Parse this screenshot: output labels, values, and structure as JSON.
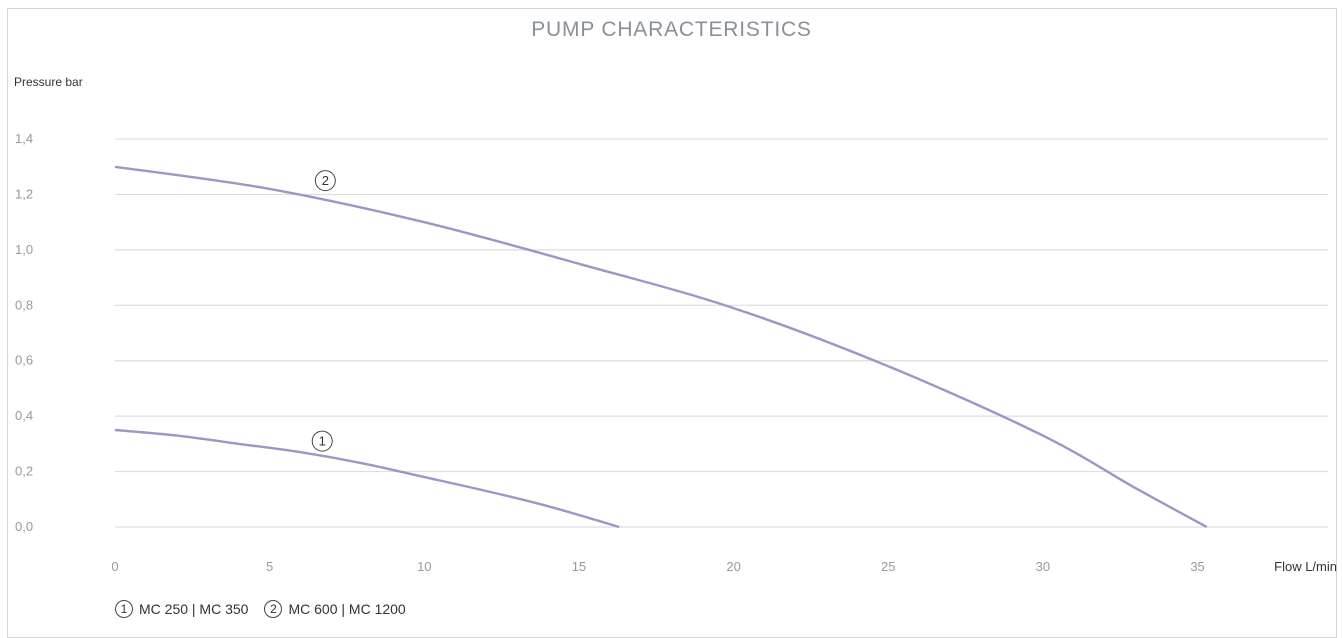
{
  "chart_data": {
    "type": "line",
    "title": "PUMP CHARACTERISTICS",
    "ylabel": "Pressure bar",
    "xlabel": "Flow L/min",
    "xlim": [
      0,
      37
    ],
    "ylim": [
      0,
      1.4
    ],
    "x_ticks": [
      "0",
      "5",
      "10",
      "15",
      "20",
      "25",
      "30",
      "35"
    ],
    "y_ticks": [
      "0,0",
      "0,2",
      "0,4",
      "0,6",
      "0,8",
      "1,0",
      "1,2",
      "1,4"
    ],
    "grid": true,
    "legend_placement": "bottom-left",
    "series": [
      {
        "name": "MC 250 | MC 350",
        "marker": "1",
        "color": "#9a98c4",
        "points": [
          [
            0,
            0.35
          ],
          [
            2,
            0.33
          ],
          [
            4,
            0.3
          ],
          [
            6,
            0.27
          ],
          [
            8,
            0.23
          ],
          [
            10,
            0.18
          ],
          [
            12,
            0.13
          ],
          [
            14,
            0.075
          ],
          [
            16.3,
            0.0
          ]
        ]
      },
      {
        "name": "MC 600 | MC 1200",
        "marker": "2",
        "color": "#9a98c4",
        "points": [
          [
            0,
            1.3
          ],
          [
            5,
            1.22
          ],
          [
            10,
            1.1
          ],
          [
            15,
            0.95
          ],
          [
            20,
            0.79
          ],
          [
            25,
            0.58
          ],
          [
            30,
            0.33
          ],
          [
            33,
            0.14
          ],
          [
            35.3,
            0.0
          ]
        ]
      }
    ]
  }
}
